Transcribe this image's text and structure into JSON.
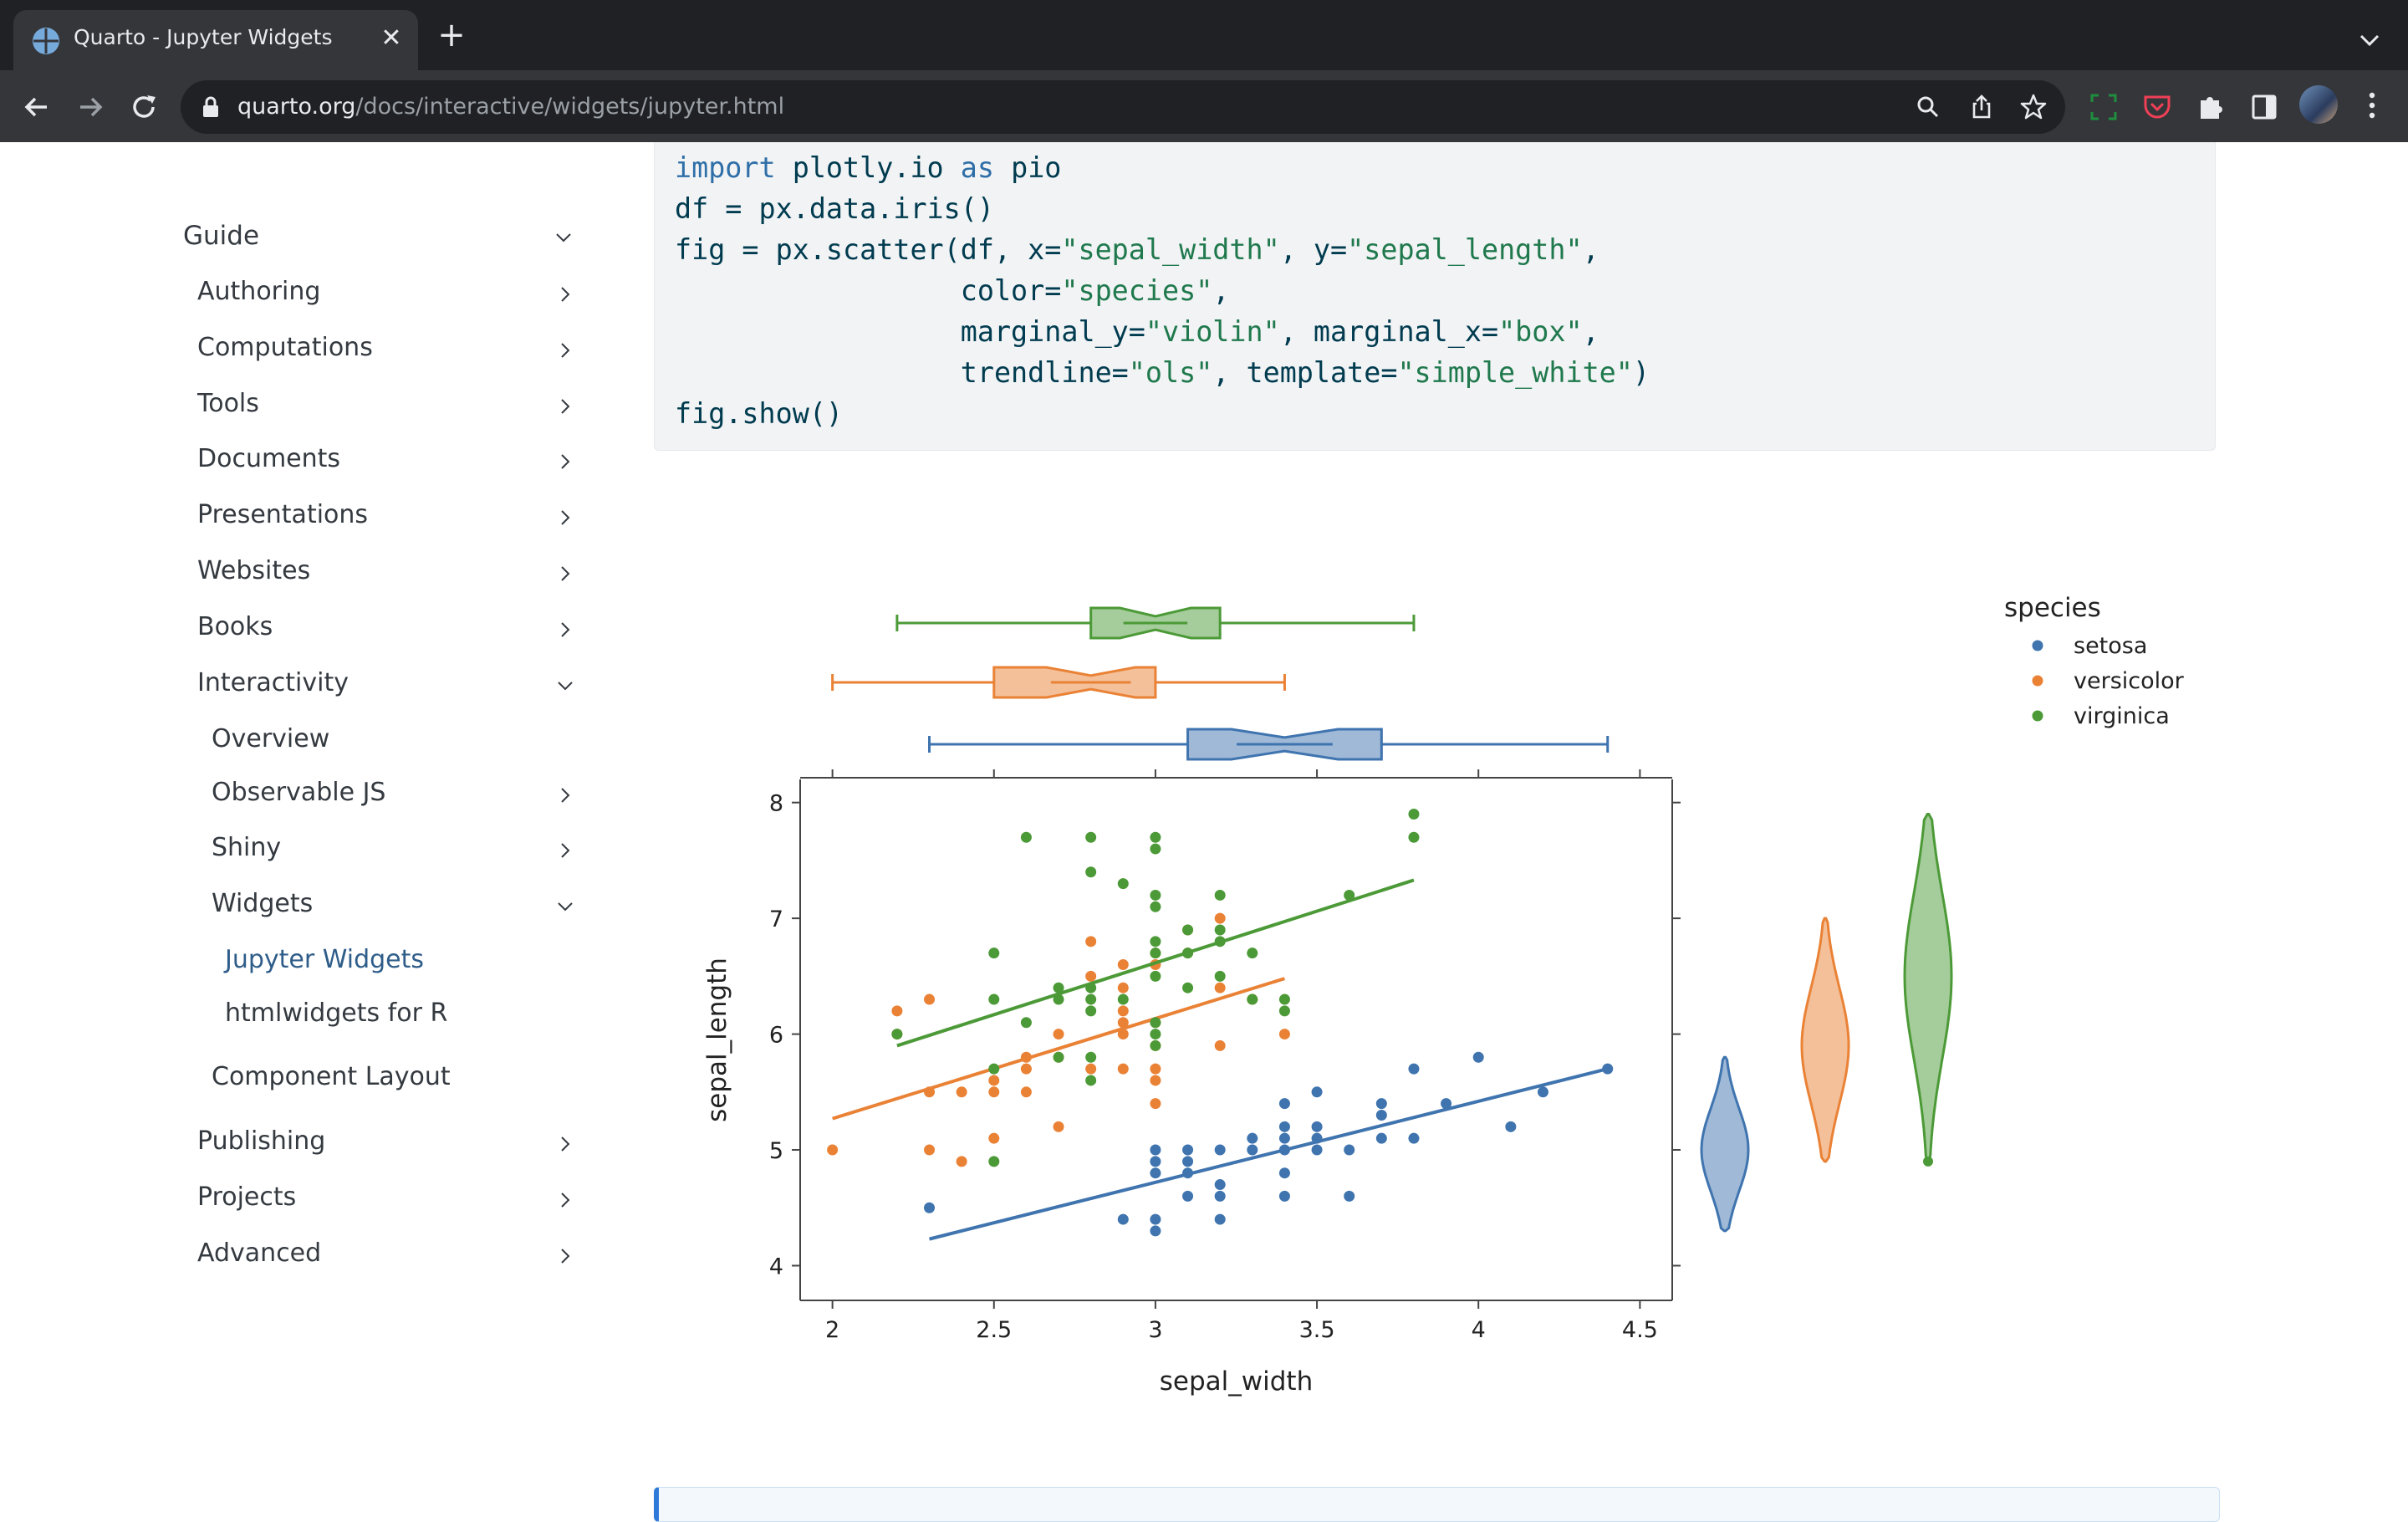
{
  "browser": {
    "tab_title": "Quarto - Jupyter Widgets",
    "url_host": "quarto.org",
    "url_path": "/docs/interactive/widgets/jupyter.html"
  },
  "sidebar": {
    "guide": "Guide",
    "items": [
      "Authoring",
      "Computations",
      "Tools",
      "Documents",
      "Presentations",
      "Websites",
      "Books"
    ],
    "interactivity": "Interactivity",
    "interactivity_children": [
      "Overview",
      "Observable JS",
      "Shiny",
      "Widgets"
    ],
    "widgets_children": [
      "Jupyter Widgets",
      "htmlwidgets for R"
    ],
    "component_layout": "Component Layout",
    "bottom_items": [
      "Publishing",
      "Projects",
      "Advanced"
    ]
  },
  "code": {
    "l1_kw1": "import",
    "l1_mid": " plotly.io ",
    "l1_kw2": "as",
    "l1_end": " pio",
    "l2": "df = px.data.iris()",
    "l3_a": "fig = px.scatter(df, x=",
    "l3_s1": "\"sepal_width\"",
    "l3_b": ", y=",
    "l3_s2": "\"sepal_length\"",
    "l3_c": ",",
    "l4_a": "                 color=",
    "l4_s": "\"species\"",
    "l4_b": ",",
    "l5_a": "                 marginal_y=",
    "l5_s1": "\"violin\"",
    "l5_b": ", marginal_x=",
    "l5_s2": "\"box\"",
    "l5_c": ",",
    "l6_a": "                 trendline=",
    "l6_s1": "\"ols\"",
    "l6_b": ", template=",
    "l6_s2": "\"simple_white\"",
    "l6_c": ")",
    "l7": "fig.show()"
  },
  "colors": {
    "setosa": "#3f74af",
    "versicolor": "#ea8236",
    "virginica": "#4c9a37"
  },
  "chart_data": {
    "type": "scatter",
    "xlabel": "sepal_width",
    "ylabel": "sepal_length",
    "xlim": [
      1.9,
      4.6
    ],
    "ylim": [
      3.7,
      8.2
    ],
    "xticks": [
      2,
      2.5,
      3,
      3.5,
      4,
      4.5
    ],
    "xtick_labels": [
      "2",
      "2.5",
      "3",
      "3.5",
      "4",
      "4.5"
    ],
    "yticks": [
      4,
      5,
      6,
      7,
      8
    ],
    "ytick_labels": [
      "4",
      "5",
      "6",
      "7",
      "8"
    ],
    "legend_title": "species",
    "legend_position": "top-right",
    "series": [
      {
        "name": "setosa",
        "color": "#3f74af",
        "points": [
          [
            2.3,
            4.5
          ],
          [
            2.9,
            4.4
          ],
          [
            3.0,
            4.4
          ],
          [
            3.0,
            4.3
          ],
          [
            3.0,
            4.8
          ],
          [
            3.0,
            4.9
          ],
          [
            3.0,
            5.0
          ],
          [
            3.1,
            4.9
          ],
          [
            3.1,
            4.8
          ],
          [
            3.1,
            4.6
          ],
          [
            3.2,
            4.6
          ],
          [
            3.2,
            4.7
          ],
          [
            3.2,
            5.0
          ],
          [
            3.2,
            4.4
          ],
          [
            3.3,
            5.0
          ],
          [
            3.3,
            5.1
          ],
          [
            3.4,
            5.0
          ],
          [
            3.4,
            5.2
          ],
          [
            3.4,
            5.4
          ],
          [
            3.4,
            4.8
          ],
          [
            3.4,
            4.6
          ],
          [
            3.5,
            5.0
          ],
          [
            3.5,
            5.1
          ],
          [
            3.5,
            5.2
          ],
          [
            3.5,
            5.5
          ],
          [
            3.6,
            4.6
          ],
          [
            3.6,
            5.0
          ],
          [
            3.7,
            5.1
          ],
          [
            3.7,
            5.3
          ],
          [
            3.7,
            5.4
          ],
          [
            3.8,
            5.1
          ],
          [
            3.8,
            5.7
          ],
          [
            3.9,
            5.4
          ],
          [
            4.0,
            5.8
          ],
          [
            4.1,
            5.2
          ],
          [
            4.2,
            5.5
          ],
          [
            4.4,
            5.7
          ],
          [
            3.4,
            5.1
          ],
          [
            3.1,
            5.0
          ]
        ],
        "trendline": [
          [
            2.3,
            4.23
          ],
          [
            4.4,
            5.7
          ]
        ],
        "box": {
          "min": 2.3,
          "q1": 3.1,
          "median": 3.4,
          "q3": 3.7,
          "max": 4.4
        },
        "violin": {
          "min": 4.3,
          "max": 5.8,
          "median": 5.0
        }
      },
      {
        "name": "versicolor",
        "color": "#ea8236",
        "points": [
          [
            2.0,
            5.0
          ],
          [
            2.2,
            6.2
          ],
          [
            2.2,
            6.0
          ],
          [
            2.3,
            5.5
          ],
          [
            2.3,
            6.3
          ],
          [
            2.3,
            5.0
          ],
          [
            2.4,
            5.5
          ],
          [
            2.4,
            4.9
          ],
          [
            2.5,
            5.5
          ],
          [
            2.5,
            5.6
          ],
          [
            2.5,
            5.1
          ],
          [
            2.6,
            5.5
          ],
          [
            2.6,
            5.8
          ],
          [
            2.6,
            5.7
          ],
          [
            2.7,
            5.2
          ],
          [
            2.7,
            5.8
          ],
          [
            2.7,
            6.0
          ],
          [
            2.8,
            6.8
          ],
          [
            2.8,
            6.5
          ],
          [
            2.8,
            5.7
          ],
          [
            2.9,
            6.6
          ],
          [
            2.9,
            6.4
          ],
          [
            2.9,
            6.2
          ],
          [
            2.9,
            6.1
          ],
          [
            2.9,
            6.0
          ],
          [
            2.9,
            5.7
          ],
          [
            3.0,
            6.7
          ],
          [
            3.0,
            6.6
          ],
          [
            3.0,
            6.1
          ],
          [
            3.0,
            5.9
          ],
          [
            3.0,
            5.6
          ],
          [
            3.0,
            5.4
          ],
          [
            3.0,
            5.7
          ],
          [
            3.1,
            6.7
          ],
          [
            3.1,
            6.9
          ],
          [
            3.2,
            7.0
          ],
          [
            3.2,
            6.4
          ],
          [
            3.2,
            5.9
          ],
          [
            3.3,
            6.3
          ],
          [
            3.4,
            6.0
          ]
        ],
        "trendline": [
          [
            2.0,
            5.27
          ],
          [
            3.4,
            6.48
          ]
        ],
        "box": {
          "min": 2.0,
          "q1": 2.5,
          "median": 2.8,
          "q3": 3.0,
          "max": 3.4
        },
        "violin": {
          "min": 4.9,
          "max": 7.0,
          "median": 5.9
        }
      },
      {
        "name": "virginica",
        "color": "#4c9a37",
        "points": [
          [
            2.2,
            6.0
          ],
          [
            2.5,
            6.7
          ],
          [
            2.5,
            6.3
          ],
          [
            2.5,
            5.7
          ],
          [
            2.5,
            4.9
          ],
          [
            2.6,
            7.7
          ],
          [
            2.6,
            6.1
          ],
          [
            2.7,
            6.4
          ],
          [
            2.7,
            6.3
          ],
          [
            2.7,
            5.8
          ],
          [
            2.8,
            7.7
          ],
          [
            2.8,
            7.4
          ],
          [
            2.8,
            6.4
          ],
          [
            2.8,
            6.3
          ],
          [
            2.8,
            6.2
          ],
          [
            2.8,
            5.6
          ],
          [
            2.8,
            5.8
          ],
          [
            2.9,
            7.3
          ],
          [
            2.9,
            6.3
          ],
          [
            3.0,
            7.7
          ],
          [
            3.0,
            7.6
          ],
          [
            3.0,
            7.2
          ],
          [
            3.0,
            7.1
          ],
          [
            3.0,
            6.8
          ],
          [
            3.0,
            6.7
          ],
          [
            3.0,
            6.5
          ],
          [
            3.0,
            6.1
          ],
          [
            3.0,
            6.0
          ],
          [
            3.0,
            5.9
          ],
          [
            3.1,
            6.9
          ],
          [
            3.1,
            6.7
          ],
          [
            3.1,
            6.4
          ],
          [
            3.2,
            7.2
          ],
          [
            3.2,
            6.9
          ],
          [
            3.2,
            6.8
          ],
          [
            3.2,
            6.5
          ],
          [
            3.3,
            6.7
          ],
          [
            3.3,
            6.3
          ],
          [
            3.4,
            6.3
          ],
          [
            3.4,
            6.2
          ],
          [
            3.6,
            7.2
          ],
          [
            3.8,
            7.9
          ],
          [
            3.8,
            7.7
          ]
        ],
        "trendline": [
          [
            2.2,
            5.9
          ],
          [
            3.8,
            7.33
          ]
        ],
        "box": {
          "min": 2.2,
          "q1": 2.8,
          "median": 3.0,
          "q3": 3.2,
          "max": 3.8
        },
        "violin": {
          "min": 4.9,
          "max": 7.9,
          "median": 6.5
        }
      }
    ]
  }
}
